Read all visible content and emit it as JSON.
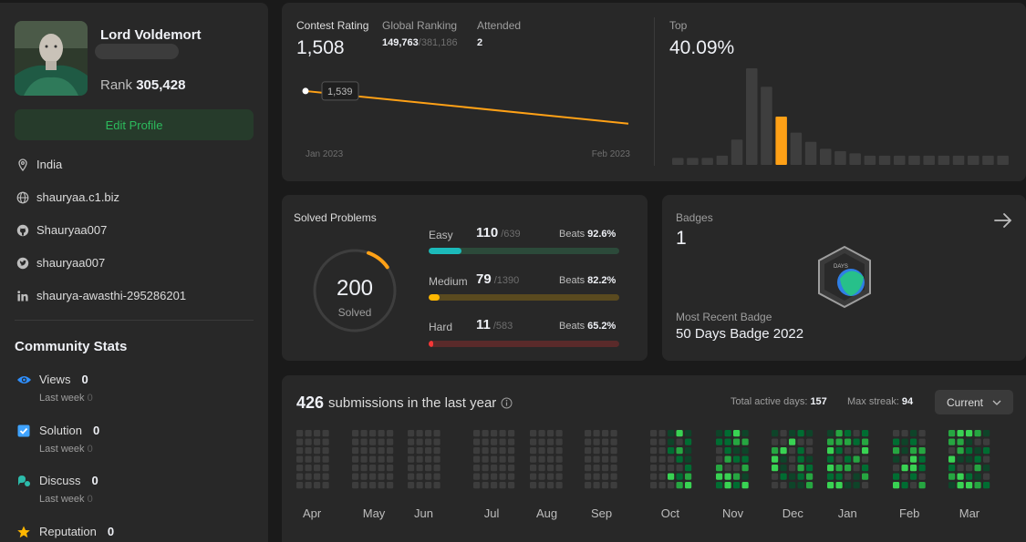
{
  "profile": {
    "name": "Lord Voldemort",
    "username": "",
    "rank_label": "Rank",
    "rank_value": "305,428",
    "edit_button": "Edit Profile",
    "location": "India",
    "website": "shauryaa.c1.biz",
    "github": "Shauryaa007",
    "twitter": "shauryaa007",
    "linkedin": "shaurya-awasthi-295286201"
  },
  "community": {
    "title": "Community Stats",
    "views": {
      "label": "Views",
      "value": "0",
      "sub_label": "Last week",
      "sub_value": "0"
    },
    "solution": {
      "label": "Solution",
      "value": "0",
      "sub_label": "Last week",
      "sub_value": "0"
    },
    "discuss": {
      "label": "Discuss",
      "value": "0",
      "sub_label": "Last week",
      "sub_value": "0"
    },
    "reputation": {
      "label": "Reputation",
      "value": "0"
    }
  },
  "contest": {
    "rating_label": "Contest Rating",
    "rating_value": "1,508",
    "global_label": "Global Ranking",
    "global_value": "149,763",
    "global_total": "/381,186",
    "attended_label": "Attended",
    "attended_value": "2",
    "top_label": "Top",
    "top_value": "40.09%",
    "tooltip": "1,539",
    "x_start": "Jan 2023",
    "x_end": "Feb 2023"
  },
  "chart_data": [
    {
      "type": "line",
      "x": [
        "Jan 2023",
        "Feb 2023"
      ],
      "series": [
        {
          "values": [
            1539,
            1508
          ]
        }
      ],
      "labels": [
        "Jan 2023",
        "Feb 2023"
      ],
      "annotation": "1,539",
      "color": "#ffa116"
    },
    {
      "type": "bar",
      "values": [
        3,
        3,
        3,
        4,
        11,
        42,
        34,
        21,
        14,
        10,
        7,
        6,
        5,
        4,
        4,
        4,
        4,
        4,
        4,
        4,
        4,
        4,
        4
      ],
      "highlight_index": 7,
      "color": "#3e3e3e",
      "highlight_color": "#ffa116"
    }
  ],
  "solved": {
    "title": "Solved Problems",
    "total": "200",
    "total_label": "Solved",
    "ring_fraction": 0.095,
    "beats_label": "Beats",
    "easy": {
      "label": "Easy",
      "count": "110",
      "total": "/639",
      "beats": "92.6%",
      "fraction": 0.172,
      "color": "#1cbaba",
      "track": "#2c4a3a"
    },
    "medium": {
      "label": "Medium",
      "count": "79",
      "total": "/1390",
      "beats": "82.2%",
      "fraction": 0.057,
      "color": "#ffb700",
      "track": "#5a4a1f"
    },
    "hard": {
      "label": "Hard",
      "count": "11",
      "total": "/583",
      "beats": "65.2%",
      "fraction": 0.019,
      "color": "#f63737",
      "track": "#5a2a2a"
    }
  },
  "badges": {
    "title": "Badges",
    "count": "1",
    "recent_label": "Most Recent Badge",
    "recent_name": "50 Days Badge 2022",
    "badge_text": "DAYS"
  },
  "submissions": {
    "count": "426",
    "label": "submissions in the last year",
    "active_label": "Total active days:",
    "active_value": "157",
    "streak_label": "Max streak:",
    "streak_value": "94",
    "dropdown": "Current",
    "months": [
      "Apr",
      "May",
      "Jun",
      "Jul",
      "Aug",
      "Sep",
      "Oct",
      "Nov",
      "Dec",
      "Jan",
      "Feb",
      "Mar"
    ]
  },
  "colors": {
    "bg": "#1a1a1a",
    "panel": "#282828",
    "accent_green": "#2cbb5d",
    "orange": "#ffa116",
    "heat_empty": "#3d3d3d",
    "heat_levels": [
      "#0e4429",
      "#006d32",
      "#26a641",
      "#39d353"
    ]
  }
}
